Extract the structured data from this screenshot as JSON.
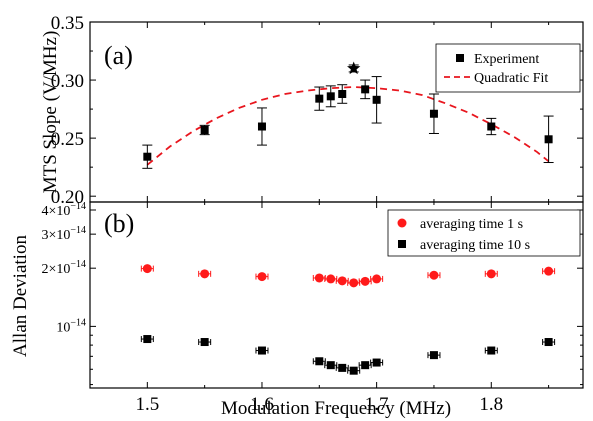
{
  "chart_data": [
    {
      "type": "scatter",
      "panel_label": "(a)",
      "xlabel": "",
      "ylabel": "MTS Slope (V/MHz)",
      "xlim": [
        1.45,
        1.88
      ],
      "ylim": [
        0.195,
        0.35
      ],
      "y_ticks": [
        "0.20",
        "0.25",
        "0.30",
        "0.35"
      ],
      "legend": {
        "placement": "top-right",
        "entries": [
          "Experiment",
          "Quadratic Fit"
        ]
      },
      "series": [
        {
          "name": "Experiment",
          "marker": "square",
          "color": "#000000",
          "x": [
            1.5,
            1.55,
            1.6,
            1.65,
            1.66,
            1.67,
            1.68,
            1.69,
            1.7,
            1.75,
            1.8,
            1.85
          ],
          "y": [
            0.234,
            0.257,
            0.26,
            0.284,
            0.286,
            0.288,
            0.31,
            0.292,
            0.283,
            0.271,
            0.26,
            0.249
          ],
          "err": [
            0.01,
            0.004,
            0.016,
            0.01,
            0.009,
            0.008,
            0.003,
            0.008,
            0.02,
            0.017,
            0.007,
            0.02
          ]
        },
        {
          "name": "Quadratic Fit",
          "style": "dashed",
          "color": "#e8161e",
          "x": [
            1.5,
            1.52,
            1.54,
            1.56,
            1.58,
            1.6,
            1.62,
            1.64,
            1.66,
            1.68,
            1.7,
            1.72,
            1.74,
            1.76,
            1.78,
            1.8,
            1.82,
            1.84,
            1.85
          ],
          "y": [
            0.227,
            0.243,
            0.256,
            0.267,
            0.276,
            0.283,
            0.288,
            0.291,
            0.293,
            0.294,
            0.293,
            0.291,
            0.287,
            0.28,
            0.272,
            0.262,
            0.251,
            0.238,
            0.23
          ]
        }
      ],
      "annotation_star": {
        "x": 1.68,
        "y": 0.31
      }
    },
    {
      "type": "scatter",
      "panel_label": "(b)",
      "xlabel": "Modulation Frequency (MHz)",
      "ylabel": "Allan Deviation",
      "y_scale": "log",
      "xlim": [
        1.45,
        1.88
      ],
      "ylim": [
        4.8e-15,
        4.4e-14
      ],
      "x_ticks": [
        "1.5",
        "1.6",
        "1.7",
        "1.8"
      ],
      "y_ticks": [
        {
          "value": 1e-14,
          "mantissa": "",
          "exponent": "−14"
        },
        {
          "value": 2e-14,
          "mantissa": "2",
          "exponent": "−14"
        },
        {
          "value": 3e-14,
          "mantissa": "3",
          "exponent": "−14"
        },
        {
          "value": 4e-14,
          "mantissa": "4",
          "exponent": "−14"
        }
      ],
      "legend": {
        "placement": "top-right",
        "entries": [
          "averaging time 1 s",
          "averaging time 10 s"
        ]
      },
      "series": [
        {
          "name": "averaging time 1 s",
          "marker": "circle",
          "color": "#ff1a1a",
          "x": [
            1.5,
            1.55,
            1.6,
            1.65,
            1.66,
            1.67,
            1.68,
            1.69,
            1.7,
            1.75,
            1.8,
            1.85
          ],
          "y": [
            1.99e-14,
            1.87e-14,
            1.81e-14,
            1.78e-14,
            1.76e-14,
            1.72e-14,
            1.68e-14,
            1.71e-14,
            1.76e-14,
            1.84e-14,
            1.87e-14,
            1.93e-14
          ]
        },
        {
          "name": "averaging time 10 s",
          "marker": "square",
          "color": "#000000",
          "x": [
            1.5,
            1.55,
            1.6,
            1.65,
            1.66,
            1.67,
            1.68,
            1.69,
            1.7,
            1.75,
            1.8,
            1.85
          ],
          "y": [
            8.6e-15,
            8.3e-15,
            7.5e-15,
            6.6e-15,
            6.3e-15,
            6.1e-15,
            5.9e-15,
            6.3e-15,
            6.5e-15,
            7.1e-15,
            7.5e-15,
            8.3e-15
          ]
        }
      ]
    }
  ]
}
